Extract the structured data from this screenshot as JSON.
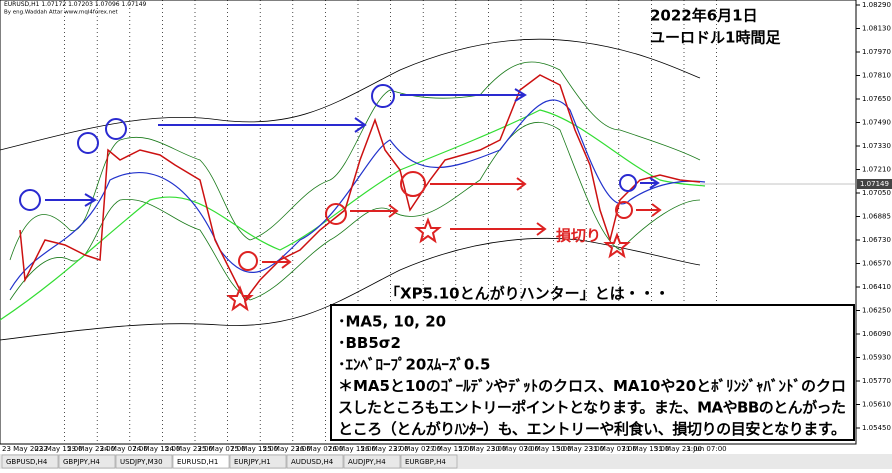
{
  "header": {
    "symbol": "EURUSD,H1",
    "open": "1.07172",
    "high": "1.07203",
    "low": "1.07096",
    "close": "1.07149",
    "credit": "By eng.Waddah Attar www.mql4forex.net"
  },
  "notes": {
    "date": "2022年6月1日",
    "timeframe": "ユーロドル1時間足",
    "stop_loss": "損切り",
    "heading": "「XP5.10とんがりハンター」とは・・・"
  },
  "box": {
    "lines": [
      "･MA5, 10, 20",
      "･BB5σ2",
      "･ｴﾝﾍﾞﾛｰﾌﾟ20ｽﾑｰｽﾞ0.5",
      "＊MA5と10のｺﾞｰﾙﾃﾞﾝやﾃﾞｯﾄのクロス、MA10や20とﾎﾞﾘﾝｼﾞｬﾊﾞﾝﾄﾞのクロ",
      "スしたところもエントリーポイントとなります。また、MAやBBのとんがった",
      "ところ（とんがりﾊﾝﾀｰ）も、エントリーや利食い、損切りの目安となります。"
    ]
  },
  "price_axis": [
    "1.08290",
    "1.08130",
    "1.07970",
    "1.07810",
    "1.07650",
    "1.07490",
    "1.07330",
    "1.07210",
    "1.07050",
    "1.06885",
    "1.06730",
    "1.06570",
    "1.06410",
    "1.06250",
    "1.06090",
    "1.05930",
    "1.05770",
    "1.05610",
    "1.05450"
  ],
  "time_axis": [
    "23 May 2022",
    "23 May 15:00",
    "23 May 23:00",
    "24 May 07:00",
    "24 May 15:00",
    "24 May 23:00",
    "25 May 07:00",
    "25 May 15:00",
    "25 May 23:00",
    "26 May 07:00",
    "26 May 15:00",
    "26 May 23:00",
    "27 May 07:00",
    "27 May 15:00",
    "27 May 23:00",
    "30 May 07:00",
    "30 May 15:00",
    "30 May 23:00",
    "31 May 07:00",
    "31 May 15:00",
    "31 May 23:00",
    "1 Jun 07:00"
  ],
  "tabs": [
    "GBPUSD,H4",
    "GBPJPY,H4",
    "USDJPY,M30",
    "EURUSD,H1",
    "EURJPY,H1",
    "AUDUSD,H4",
    "AUDJPY,H4",
    "EURGBP,H4"
  ],
  "active_tab": 3
}
